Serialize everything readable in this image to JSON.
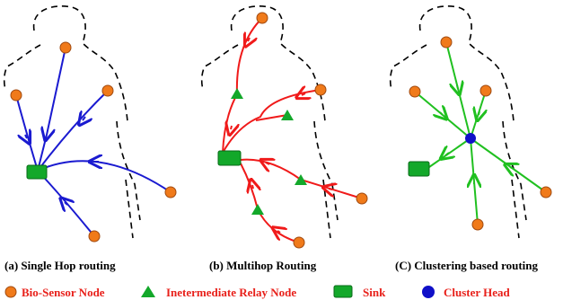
{
  "panels": [
    {
      "caption": "(a) Single Hop routing"
    },
    {
      "caption": "(b) Multihop Routing"
    },
    {
      "caption": "(C) Clustering based routing"
    }
  ],
  "legend": [
    {
      "label": "Bio-Sensor Node"
    },
    {
      "label": "Inetermediate Relay Node"
    },
    {
      "label": "Sink"
    },
    {
      "label": "Cluster Head"
    }
  ]
}
